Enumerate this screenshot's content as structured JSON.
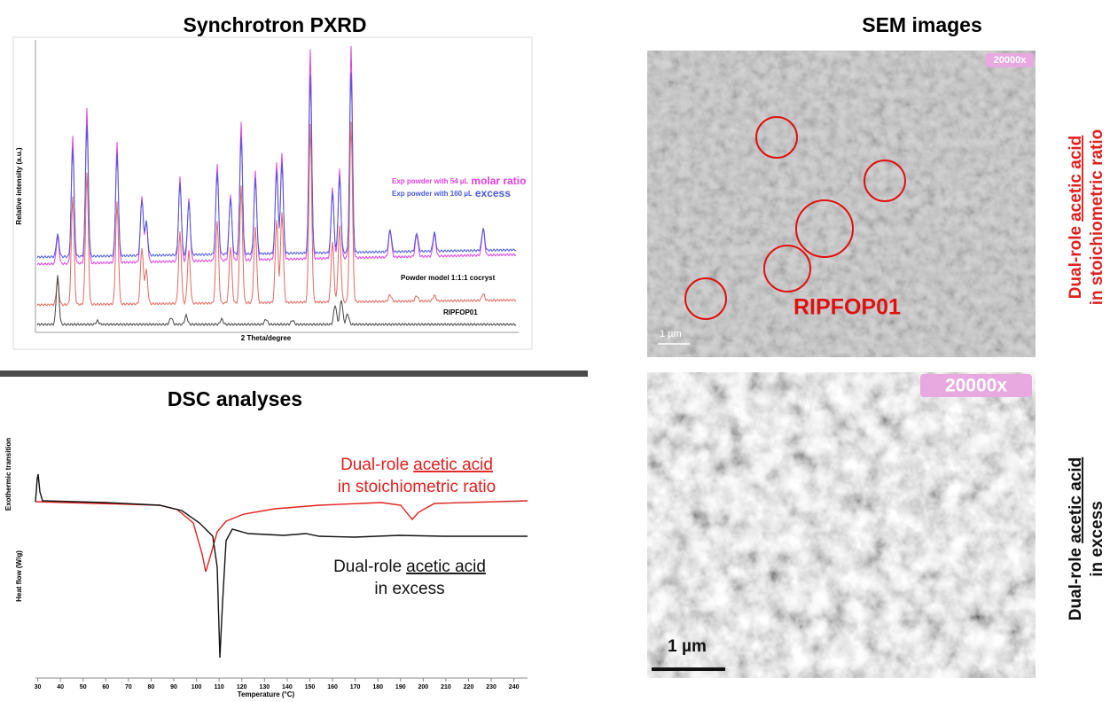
{
  "pxrd": {
    "title": "Synchrotron PXRD",
    "y_label": "Relative intensity (a.u.)",
    "x_label": "2 Theta/degree",
    "legend": [
      {
        "text": "Exp powder with 54 µL",
        "suffix": "molar ratio",
        "color": "#e040e0"
      },
      {
        "text": "Exp powder with 160 µL",
        "suffix": "excess",
        "color": "#4a5ad8"
      }
    ],
    "traces": [
      {
        "text": "Powder model 1:1:1 cocryst",
        "color": "#e06a60"
      },
      {
        "text": "RIPFOP01",
        "color": "#444444"
      }
    ]
  },
  "dsc": {
    "title": "DSC analyses",
    "y_label_top": "Exothermic transition",
    "y_label": "Heat flow (W/g)",
    "x_label": "Temperature (°C)",
    "xlim": [
      29,
      246
    ],
    "xticks": [
      30,
      40,
      50,
      60,
      70,
      80,
      90,
      100,
      110,
      120,
      130,
      140,
      150,
      160,
      170,
      180,
      190,
      200,
      210,
      220,
      230,
      240
    ],
    "annotations": [
      {
        "prefix": "Dual-role",
        "emphasis": "acetic acid",
        "line2": "in stoichiometric ratio",
        "color": "#e02020"
      },
      {
        "prefix": "Dual-role",
        "emphasis": "acetic acid",
        "line2": "in excess",
        "color": "#111111"
      }
    ]
  },
  "sem": {
    "title": "SEM images",
    "images": [
      {
        "magnification": "20000x",
        "scale": "1 µm",
        "label": "RIPFOP01",
        "side_prefix": "Dual-role",
        "side_emphasis": "acetic acid",
        "side_line2": "in stoichiometric ratio",
        "side_color": "#e02020"
      },
      {
        "magnification": "20000x",
        "scale": "1 µm",
        "side_prefix": "Dual-role",
        "side_emphasis": "acetic acid",
        "side_line2": "in excess",
        "side_color": "#111111"
      }
    ]
  }
}
